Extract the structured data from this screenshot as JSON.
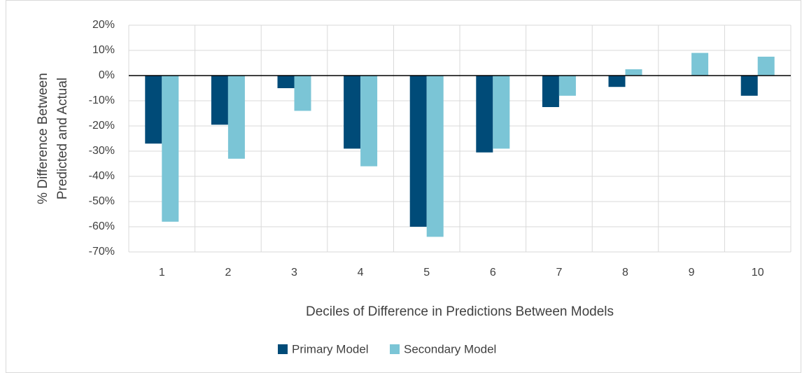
{
  "chart_data": {
    "type": "bar",
    "x_label": "Deciles of Difference in Predictions Between Models",
    "y_label": [
      "% Difference Between",
      "Predicted and Actual"
    ],
    "categories": [
      "1",
      "2",
      "3",
      "4",
      "5",
      "6",
      "7",
      "8",
      "9",
      "10"
    ],
    "series": [
      {
        "name": "Primary Model",
        "color": "#004b78",
        "values": [
          -27,
          -19.5,
          -5,
          -29,
          -60,
          -30.5,
          -12.5,
          -4.5,
          0,
          -8
        ]
      },
      {
        "name": "Secondary Model",
        "color": "#7bc5d6",
        "values": [
          -58,
          -33,
          -14,
          -36,
          -64,
          -29,
          -8,
          2.5,
          9,
          7.5
        ]
      }
    ],
    "ylim": [
      -70,
      20
    ],
    "yticks": [
      {
        "value": -70,
        "label": "-70%"
      },
      {
        "value": -60,
        "label": "-60%"
      },
      {
        "value": -50,
        "label": "-50%"
      },
      {
        "value": -40,
        "label": "-40%"
      },
      {
        "value": -30,
        "label": "-30%"
      },
      {
        "value": -20,
        "label": "-20%"
      },
      {
        "value": -10,
        "label": "-10%"
      },
      {
        "value": 0,
        "label": "0%"
      },
      {
        "value": 10,
        "label": "10%"
      },
      {
        "value": 20,
        "label": "20%"
      }
    ],
    "grid": true,
    "legend_position": "bottom"
  }
}
